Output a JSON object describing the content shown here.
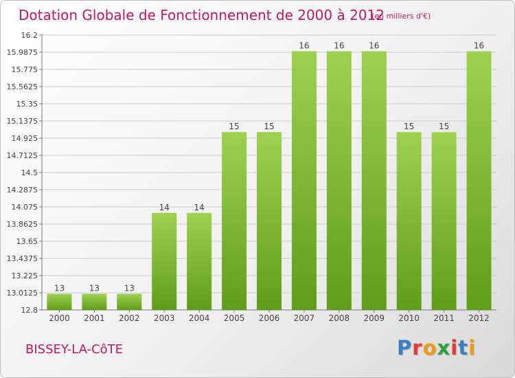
{
  "header": {
    "title": "Dotation Globale de Fonctionnement de 2000 à 2012",
    "unit_note": "(en milliers d'€)"
  },
  "footer": {
    "commune": "BISSEY-LA-CôTE",
    "logo_text": "Proxiti",
    "logo_colors": [
      "#3a7fc4",
      "#e53935",
      "#f39c12",
      "#2e9f3a",
      "#e53935",
      "#3a7fc4",
      "#f39c12"
    ]
  },
  "colors": {
    "bar_top": "#9fd14f",
    "bar_bottom": "#5f9e1a",
    "title": "#c2185b",
    "grid": "#cccccc"
  },
  "chart_data": {
    "type": "bar",
    "title": "Dotation Globale de Fonctionnement de 2000 à 2012",
    "subtitle": "(en milliers d'€)",
    "xlabel": "",
    "ylabel": "",
    "categories": [
      "2000",
      "2001",
      "2002",
      "2003",
      "2004",
      "2005",
      "2006",
      "2007",
      "2008",
      "2009",
      "2010",
      "2011",
      "2012"
    ],
    "values": [
      13,
      13,
      13,
      14,
      14,
      15,
      15,
      16,
      16,
      16,
      15,
      15,
      16
    ],
    "data_labels": [
      "13",
      "13",
      "13",
      "14",
      "14",
      "15",
      "15",
      "16",
      "16",
      "16",
      "15",
      "15",
      "16"
    ],
    "ylim": [
      12.8,
      16.2
    ],
    "y_ticks": [
      "12.8",
      "13.0125",
      "13.225",
      "13.4375",
      "13.65",
      "13.8625",
      "14.075",
      "14.2875",
      "14.5",
      "14.7125",
      "14.925",
      "15.1375",
      "15.35",
      "15.5625",
      "15.775",
      "15.9875",
      "16.2"
    ],
    "grid": true,
    "legend": "none"
  }
}
